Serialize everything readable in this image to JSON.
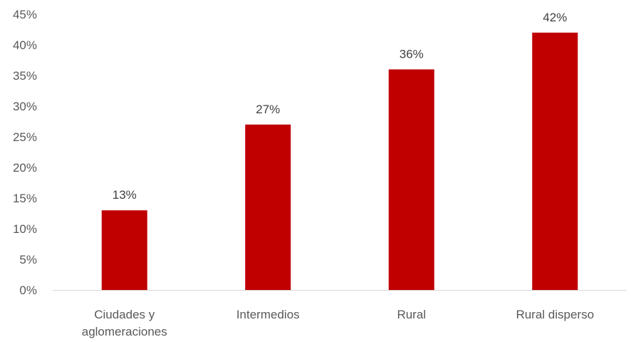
{
  "chart_data": {
    "type": "bar",
    "categories": [
      [
        "Ciudades y",
        "aglomeraciones"
      ],
      [
        "Intermedios"
      ],
      [
        "Rural"
      ],
      [
        "Rural disperso"
      ]
    ],
    "values": [
      13,
      27,
      36,
      42
    ],
    "data_labels": [
      "13%",
      "27%",
      "36%",
      "42%"
    ],
    "title": "",
    "xlabel": "",
    "ylabel": "",
    "ylim": [
      0,
      45
    ],
    "yticks": [
      0,
      5,
      10,
      15,
      20,
      25,
      30,
      35,
      40,
      45
    ],
    "ytick_labels": [
      "0%",
      "5%",
      "10%",
      "15%",
      "20%",
      "25%",
      "30%",
      "35%",
      "40%",
      "45%"
    ],
    "grid": false,
    "legend": "none",
    "bar_color": "#C00000",
    "axis_color": "#D9D9D9"
  }
}
